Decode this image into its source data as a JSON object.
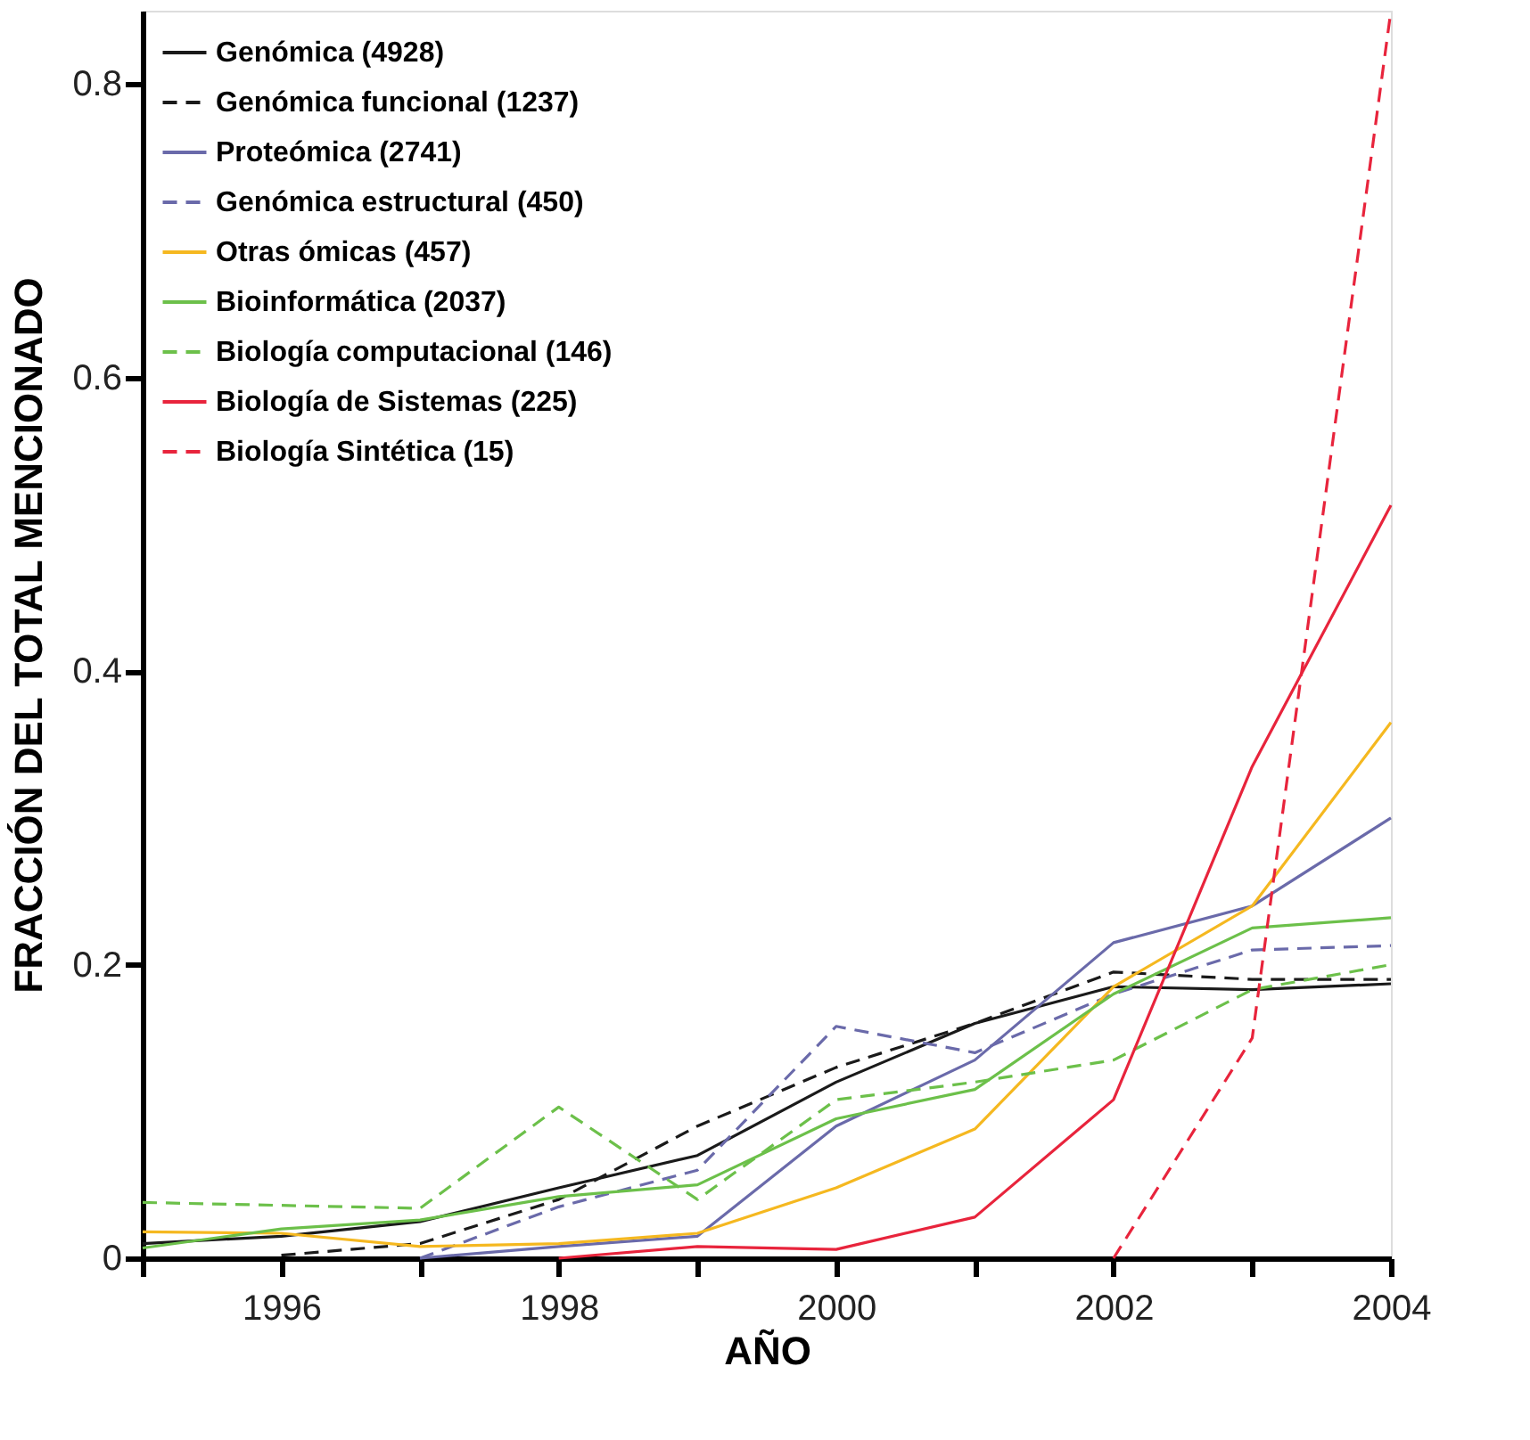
{
  "chart_data": {
    "type": "line",
    "xlabel": "AÑO",
    "ylabel": "FRACCIÓN DEL TOTAL MENCIONADO",
    "x": [
      1995,
      1996,
      1997,
      1998,
      1999,
      2000,
      2001,
      2002,
      2003,
      2004
    ],
    "series": [
      {
        "name": "Genómica (4928)",
        "color": "#1a1a1a",
        "line_style": "solid",
        "values": [
          0.01,
          0.015,
          0.025,
          0.048,
          0.07,
          0.12,
          0.16,
          0.185,
          0.183,
          0.187
        ]
      },
      {
        "name": "Genómica funcional (1237)",
        "color": "#1a1a1a",
        "line_style": "dashed",
        "values": [
          null,
          0.002,
          0.01,
          0.04,
          0.09,
          0.13,
          0.16,
          0.195,
          0.19,
          0.19
        ]
      },
      {
        "name": "Proteómica (2741)",
        "color": "#6a6aaa",
        "line_style": "solid",
        "values": [
          null,
          null,
          0.0,
          0.008,
          0.015,
          0.09,
          0.135,
          0.215,
          0.24,
          0.3
        ]
      },
      {
        "name": "Genómica estructural (450)",
        "color": "#6a6aaa",
        "line_style": "dashed",
        "values": [
          null,
          null,
          0.0,
          0.035,
          0.06,
          0.158,
          0.14,
          0.18,
          0.21,
          0.213
        ]
      },
      {
        "name": "Otras ómicas  (457)",
        "color": "#f5b820",
        "line_style": "solid",
        "values": [
          0.018,
          0.017,
          0.008,
          0.01,
          0.017,
          0.048,
          0.088,
          0.185,
          0.24,
          0.365
        ]
      },
      {
        "name": "Bioinformática (2037)",
        "color": "#6cc04a",
        "line_style": "solid",
        "values": [
          0.007,
          0.02,
          0.026,
          0.042,
          0.05,
          0.095,
          0.115,
          0.18,
          0.225,
          0.232
        ]
      },
      {
        "name": "Biología computacional (146)",
        "color": "#6cc04a",
        "line_style": "dashed",
        "values": [
          0.038,
          0.036,
          0.034,
          0.103,
          0.04,
          0.108,
          0.12,
          0.135,
          0.183,
          0.2
        ]
      },
      {
        "name": "Biología de Sistemas (225)",
        "color": "#e8243c",
        "line_style": "solid",
        "values": [
          null,
          null,
          null,
          0.0,
          0.008,
          0.006,
          0.028,
          0.108,
          0.335,
          0.513
        ]
      },
      {
        "name": "Biología Sintética (15)",
        "color": "#e8243c",
        "line_style": "dashed",
        "values": [
          null,
          null,
          null,
          null,
          null,
          null,
          null,
          0.0,
          0.15,
          0.85
        ]
      }
    ],
    "xlim": [
      1995,
      2004
    ],
    "xticks": [
      {
        "value": 1995,
        "label": null
      },
      1996,
      {
        "value": 1997,
        "label": null
      },
      1998,
      {
        "value": 1999,
        "label": null
      },
      2000,
      {
        "value": 2001,
        "label": null
      },
      2002,
      {
        "value": 2003,
        "label": null
      },
      2004
    ],
    "ylim": [
      0,
      0.85
    ],
    "yticks": [
      0,
      0.2,
      0.4,
      0.6,
      0.8
    ],
    "grid": false,
    "legend": "top left",
    "marker": "none"
  }
}
